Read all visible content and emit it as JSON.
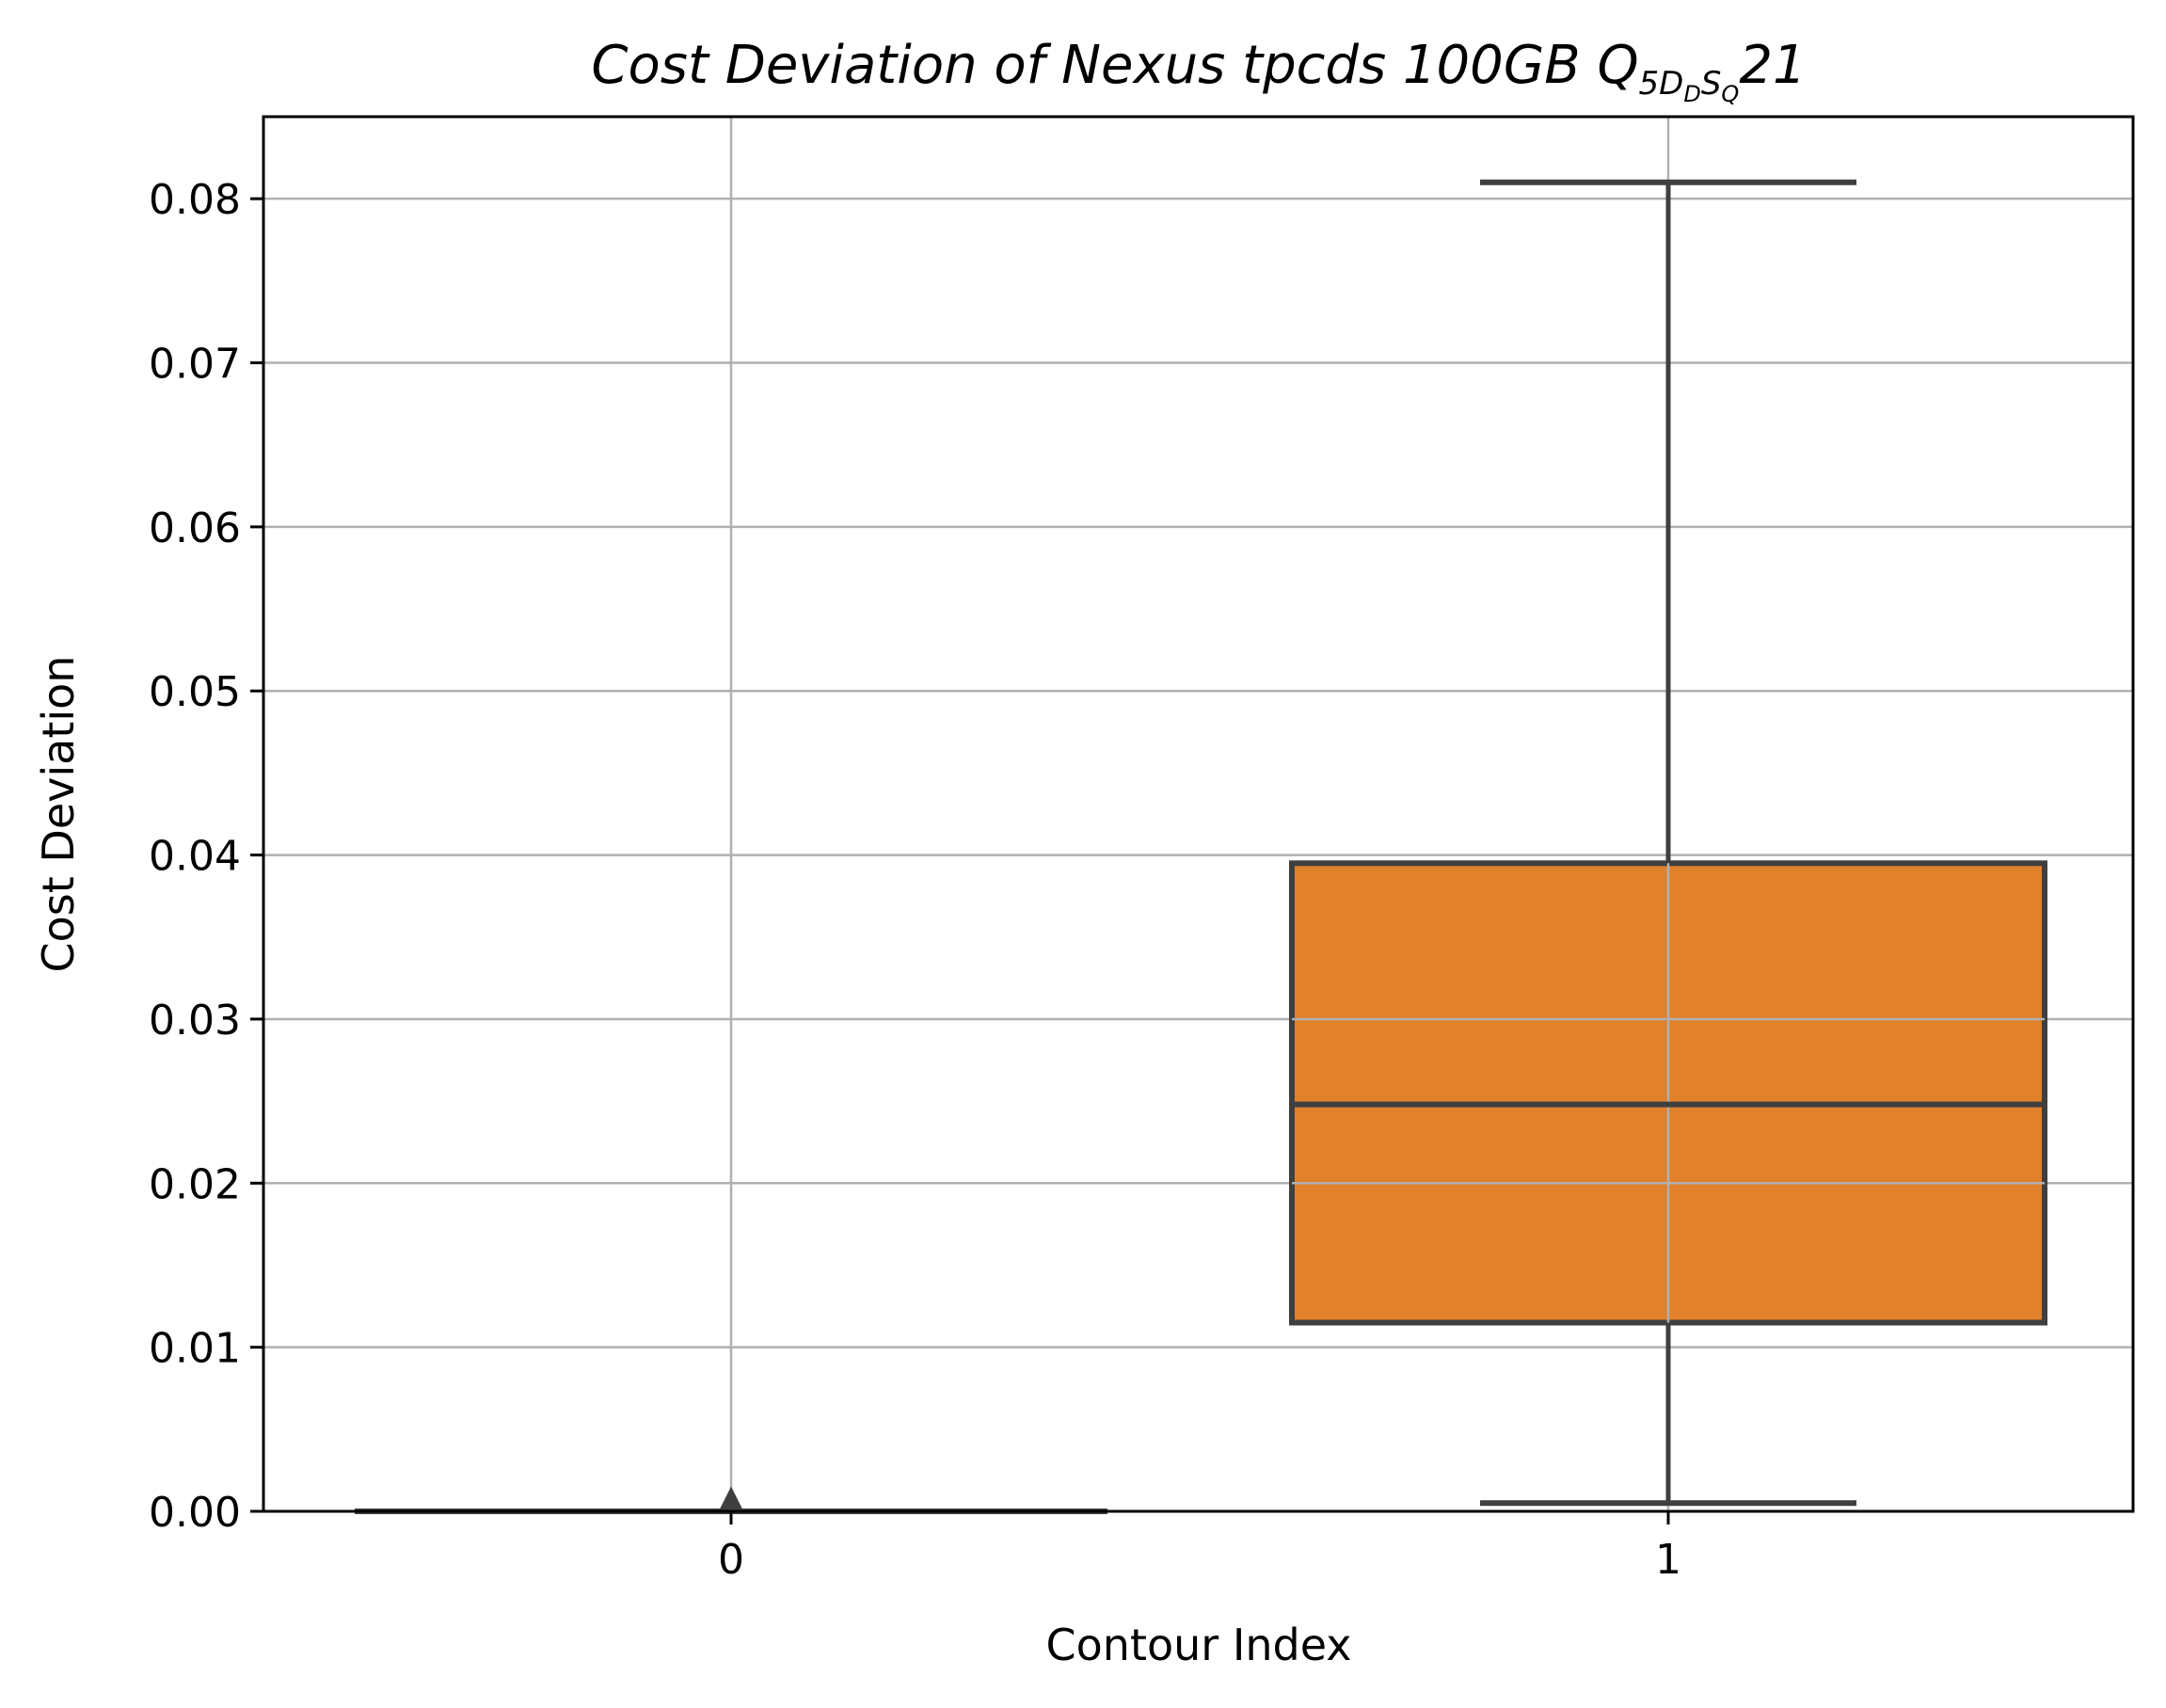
{
  "chart_data": {
    "type": "box",
    "title": {
      "main": "Cost Deviation of Nexus tpcds  100GB  ",
      "q_letter": "Q",
      "sub_5": "5",
      "sub_D": "D",
      "sub_D_sub": "D",
      "sub_S": "S",
      "sub_S_sub": "Q",
      "suffix": "21"
    },
    "xlabel": "Contour Index",
    "ylabel": "Cost Deviation",
    "categories": [
      "0",
      "1"
    ],
    "ylim": [
      0,
      0.085
    ],
    "yticks": [
      0.0,
      0.01,
      0.02,
      0.03,
      0.04,
      0.05,
      0.06,
      0.07,
      0.08
    ],
    "ytick_labels": [
      "0.00",
      "0.01",
      "0.02",
      "0.03",
      "0.04",
      "0.05",
      "0.06",
      "0.07",
      "0.08"
    ],
    "grid": true,
    "boxes": [
      {
        "category": "0",
        "whisker_low": 0.0,
        "q1": 0.0,
        "median": 0.0,
        "q3": 0.0,
        "whisker_high": 0.0,
        "fliers": [
          0.0003
        ],
        "color": "#1f77b4"
      },
      {
        "category": "1",
        "whisker_low": 0.0005,
        "q1": 0.0115,
        "median": 0.0248,
        "q3": 0.0395,
        "whisker_high": 0.081,
        "fliers": [],
        "color": "#e1812c"
      }
    ],
    "colors": {
      "line": "#3f3f3f",
      "grid": "#b0b0b0",
      "axes": "#000000"
    }
  }
}
